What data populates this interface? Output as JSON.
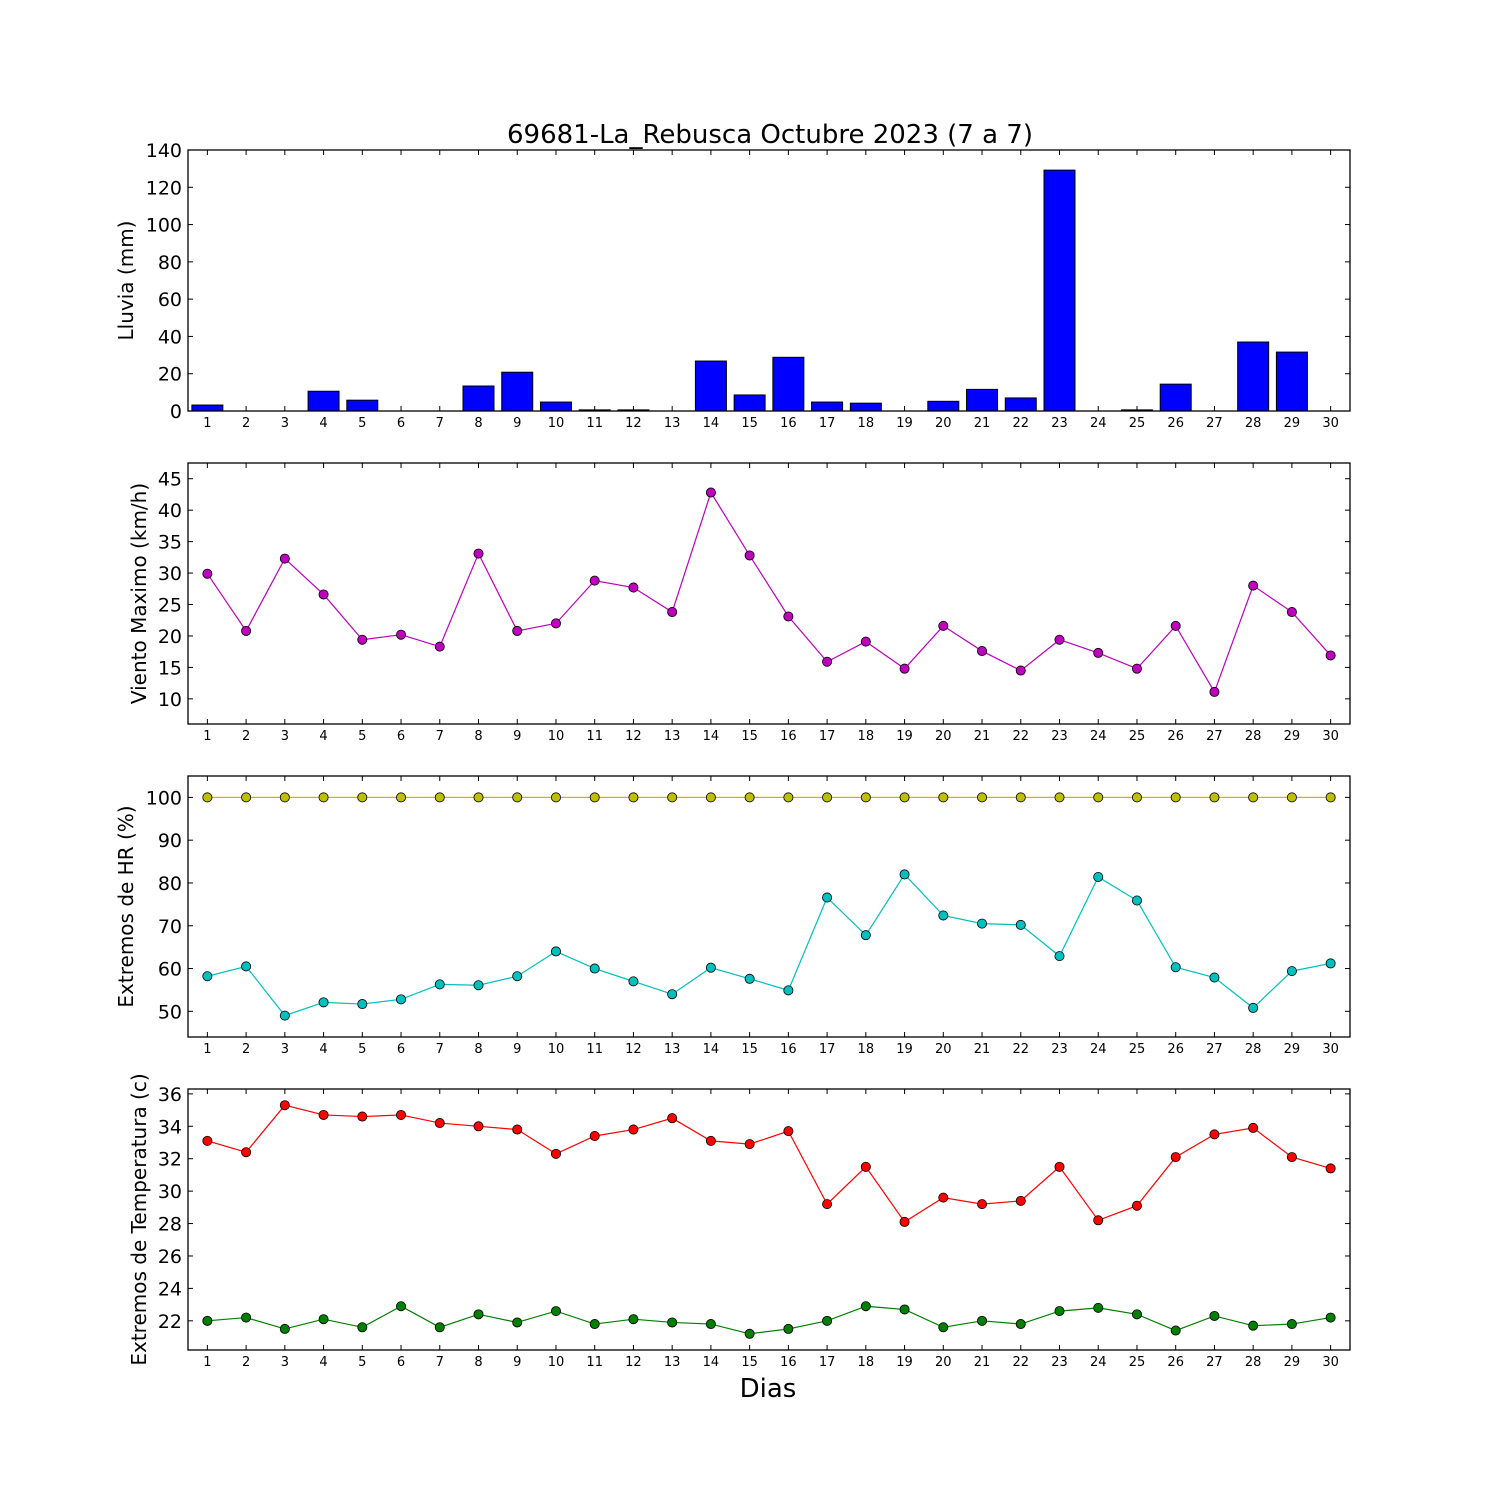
{
  "title": "69681-La_Rebusca Octubre 2023  (7 a 7)",
  "xlabel": "Dias",
  "chart_data": [
    {
      "type": "bar",
      "ylabel": "Lluvia (mm)",
      "categories": [
        1,
        2,
        3,
        4,
        5,
        6,
        7,
        8,
        9,
        10,
        11,
        12,
        13,
        14,
        15,
        16,
        17,
        18,
        19,
        20,
        21,
        22,
        23,
        24,
        25,
        26,
        27,
        28,
        29,
        30
      ],
      "series": [
        {
          "color": "#0000ff",
          "values": [
            3.2,
            0,
            0,
            10.6,
            5.8,
            0,
            0,
            13.4,
            20.8,
            4.8,
            0.6,
            0.6,
            0,
            26.8,
            8.6,
            28.8,
            4.8,
            4.2,
            0,
            5.2,
            11.6,
            7,
            129.2,
            0,
            0.6,
            14.4,
            0,
            37,
            31.6,
            0
          ]
        }
      ],
      "ylim": [
        0,
        140
      ],
      "yticks": [
        0,
        20,
        40,
        60,
        80,
        100,
        120,
        140
      ]
    },
    {
      "type": "line",
      "ylabel": "Viento Maximo (km/h)",
      "x": [
        1,
        2,
        3,
        4,
        5,
        6,
        7,
        8,
        9,
        10,
        11,
        12,
        13,
        14,
        15,
        16,
        17,
        18,
        19,
        20,
        21,
        22,
        23,
        24,
        25,
        26,
        27,
        28,
        29,
        30
      ],
      "series": [
        {
          "color": "#bf00bf",
          "values": [
            29.9,
            20.8,
            32.3,
            26.6,
            19.4,
            20.2,
            18.3,
            33.1,
            20.8,
            22,
            28.8,
            27.7,
            23.8,
            42.8,
            32.8,
            23.1,
            15.9,
            19.1,
            14.8,
            21.6,
            17.6,
            14.5,
            19.4,
            17.3,
            14.8,
            21.6,
            11.1,
            28,
            23.8,
            16.9
          ]
        }
      ],
      "ylim": [
        6,
        47.5
      ],
      "yticks": [
        10,
        15,
        20,
        25,
        30,
        35,
        40,
        45
      ]
    },
    {
      "type": "line",
      "ylabel": "Extremos de HR (%)",
      "x": [
        1,
        2,
        3,
        4,
        5,
        6,
        7,
        8,
        9,
        10,
        11,
        12,
        13,
        14,
        15,
        16,
        17,
        18,
        19,
        20,
        21,
        22,
        23,
        24,
        25,
        26,
        27,
        28,
        29,
        30
      ],
      "series": [
        {
          "color": "#bfbf00",
          "values": [
            100,
            100,
            100,
            100,
            100,
            100,
            100,
            100,
            100,
            100,
            100,
            100,
            100,
            100,
            100,
            100,
            100,
            100,
            100,
            100,
            100,
            100,
            100,
            100,
            100,
            100,
            100,
            100,
            100,
            100
          ]
        },
        {
          "color": "#00bfbf",
          "values": [
            58.2,
            60.5,
            49,
            52.1,
            51.7,
            52.8,
            56.3,
            56.1,
            58.2,
            64,
            60,
            57,
            54,
            60.2,
            57.6,
            54.9,
            76.6,
            67.8,
            82,
            72.4,
            70.5,
            70.2,
            62.9,
            81.4,
            75.9,
            60.3,
            57.9,
            50.8,
            59.4,
            61.2
          ]
        }
      ],
      "ylim": [
        44,
        105
      ],
      "yticks": [
        50,
        60,
        70,
        80,
        90,
        100
      ]
    },
    {
      "type": "line",
      "ylabel": "Extremos de Temperatura (c)",
      "x": [
        1,
        2,
        3,
        4,
        5,
        6,
        7,
        8,
        9,
        10,
        11,
        12,
        13,
        14,
        15,
        16,
        17,
        18,
        19,
        20,
        21,
        22,
        23,
        24,
        25,
        26,
        27,
        28,
        29,
        30
      ],
      "series": [
        {
          "color": "#ff0000",
          "values": [
            33.1,
            32.4,
            35.3,
            34.7,
            34.6,
            34.7,
            34.2,
            34,
            33.8,
            32.3,
            33.4,
            33.8,
            34.5,
            33.1,
            32.9,
            33.7,
            29.2,
            31.5,
            28.1,
            29.6,
            29.2,
            29.4,
            31.5,
            28.2,
            29.1,
            32.1,
            33.5,
            33.9,
            32.1,
            31.4
          ]
        },
        {
          "color": "#007f00",
          "values": [
            22,
            22.2,
            21.5,
            22.1,
            21.6,
            22.9,
            21.6,
            22.4,
            21.9,
            22.6,
            21.8,
            22.1,
            21.9,
            21.8,
            21.2,
            21.5,
            22,
            22.9,
            22.7,
            21.6,
            22,
            21.8,
            22.6,
            22.8,
            22.4,
            21.4,
            22.3,
            21.7,
            21.8,
            22.2
          ]
        }
      ],
      "ylim": [
        20.2,
        36.3
      ],
      "yticks": [
        22,
        24,
        26,
        28,
        30,
        32,
        34,
        36
      ]
    }
  ]
}
